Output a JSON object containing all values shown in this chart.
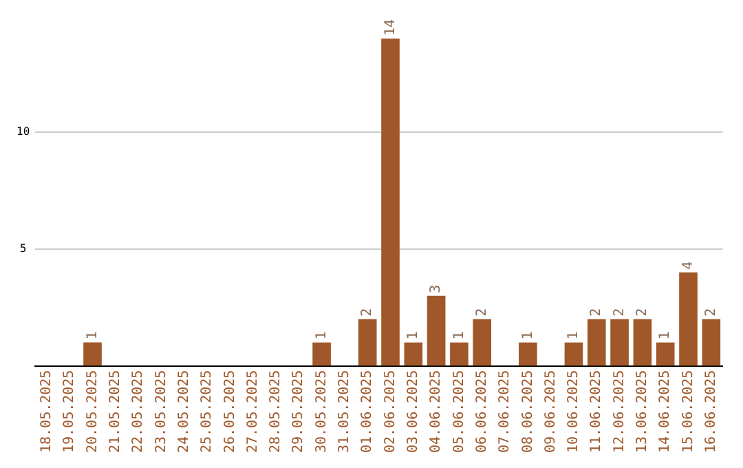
{
  "chart_data": {
    "type": "bar",
    "categories": [
      "18.05.2025",
      "19.05.2025",
      "20.05.2025",
      "21.05.2025",
      "22.05.2025",
      "23.05.2025",
      "24.05.2025",
      "25.05.2025",
      "26.05.2025",
      "27.05.2025",
      "28.05.2025",
      "29.05.2025",
      "30.05.2025",
      "31.05.2025",
      "01.06.2025",
      "02.06.2025",
      "03.06.2025",
      "04.06.2025",
      "05.06.2025",
      "06.06.2025",
      "07.06.2025",
      "08.06.2025",
      "09.06.2025",
      "10.06.2025",
      "11.06.2025",
      "12.06.2025",
      "13.06.2025",
      "14.06.2025",
      "15.06.2025",
      "16.06.2025"
    ],
    "values": [
      0,
      0,
      1,
      0,
      0,
      0,
      0,
      0,
      0,
      0,
      0,
      0,
      1,
      0,
      2,
      14,
      1,
      3,
      1,
      2,
      0,
      1,
      0,
      1,
      2,
      2,
      2,
      1,
      4,
      2
    ],
    "value_labels": [
      null,
      null,
      "1",
      null,
      null,
      null,
      null,
      null,
      null,
      null,
      null,
      null,
      "1",
      null,
      "2",
      "14",
      "1",
      "3",
      "1",
      "2",
      null,
      "1",
      null,
      "1",
      "2",
      "2",
      "2",
      "1",
      "4",
      "2"
    ],
    "color": "#a0582a",
    "ylim": [
      0,
      14
    ],
    "yticks": [
      5,
      10
    ],
    "grid": "y"
  }
}
